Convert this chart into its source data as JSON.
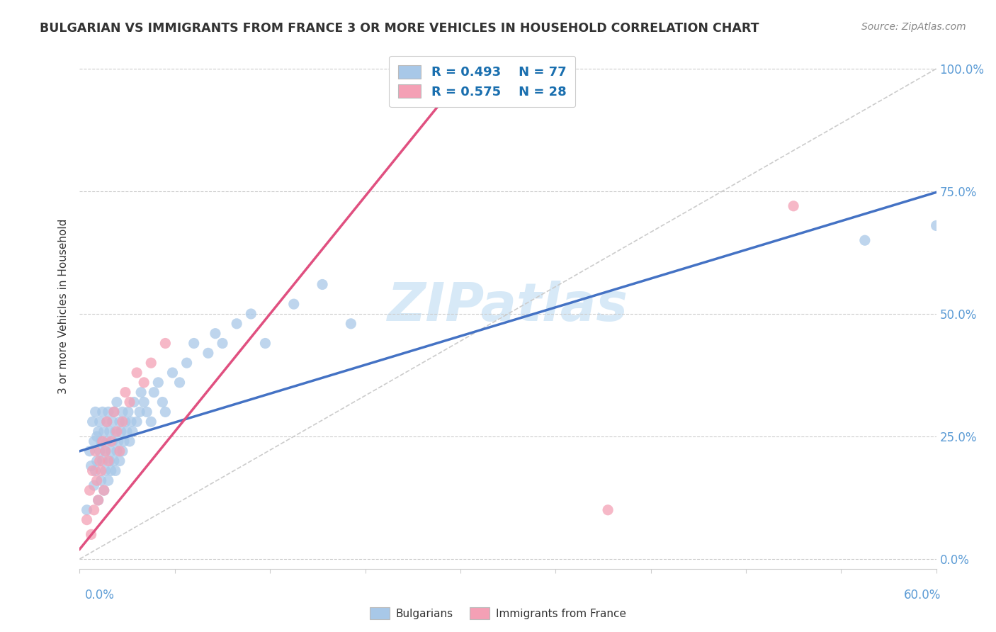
{
  "title": "BULGARIAN VS IMMIGRANTS FROM FRANCE 3 OR MORE VEHICLES IN HOUSEHOLD CORRELATION CHART",
  "source": "Source: ZipAtlas.com",
  "ylabel": "3 or more Vehicles in Household",
  "yticks": [
    "0.0%",
    "25.0%",
    "50.0%",
    "75.0%",
    "100.0%"
  ],
  "ytick_vals": [
    0.0,
    0.25,
    0.5,
    0.75,
    1.0
  ],
  "xlim": [
    0.0,
    0.6
  ],
  "ylim": [
    -0.02,
    1.05
  ],
  "watermark": "ZIPatlas",
  "blue_color": "#a8c8e8",
  "pink_color": "#f4a0b5",
  "trend_blue": "#4472c4",
  "trend_pink": "#e05080",
  "ref_line_color": "#cccccc",
  "blue_intercept": 0.22,
  "blue_slope": 0.88,
  "pink_intercept": 0.02,
  "pink_slope": 3.6,
  "bulgarians_x": [
    0.005,
    0.007,
    0.008,
    0.009,
    0.01,
    0.01,
    0.011,
    0.011,
    0.012,
    0.012,
    0.013,
    0.013,
    0.014,
    0.014,
    0.015,
    0.015,
    0.016,
    0.016,
    0.017,
    0.017,
    0.018,
    0.018,
    0.019,
    0.019,
    0.02,
    0.02,
    0.021,
    0.021,
    0.022,
    0.022,
    0.023,
    0.023,
    0.024,
    0.024,
    0.025,
    0.025,
    0.026,
    0.026,
    0.027,
    0.028,
    0.028,
    0.029,
    0.03,
    0.03,
    0.031,
    0.032,
    0.033,
    0.034,
    0.035,
    0.036,
    0.037,
    0.038,
    0.04,
    0.042,
    0.043,
    0.045,
    0.047,
    0.05,
    0.052,
    0.055,
    0.058,
    0.06,
    0.065,
    0.07,
    0.075,
    0.08,
    0.09,
    0.095,
    0.1,
    0.11,
    0.12,
    0.13,
    0.15,
    0.17,
    0.19,
    0.55,
    0.6
  ],
  "bulgarians_y": [
    0.1,
    0.22,
    0.19,
    0.28,
    0.15,
    0.24,
    0.18,
    0.3,
    0.2,
    0.25,
    0.12,
    0.26,
    0.22,
    0.28,
    0.16,
    0.24,
    0.2,
    0.3,
    0.14,
    0.26,
    0.22,
    0.18,
    0.28,
    0.24,
    0.16,
    0.3,
    0.2,
    0.26,
    0.22,
    0.18,
    0.28,
    0.24,
    0.2,
    0.3,
    0.18,
    0.26,
    0.22,
    0.32,
    0.24,
    0.2,
    0.28,
    0.26,
    0.3,
    0.22,
    0.24,
    0.28,
    0.26,
    0.3,
    0.24,
    0.28,
    0.26,
    0.32,
    0.28,
    0.3,
    0.34,
    0.32,
    0.3,
    0.28,
    0.34,
    0.36,
    0.32,
    0.3,
    0.38,
    0.36,
    0.4,
    0.44,
    0.42,
    0.46,
    0.44,
    0.48,
    0.5,
    0.44,
    0.52,
    0.56,
    0.48,
    0.65,
    0.68
  ],
  "france_x": [
    0.005,
    0.007,
    0.008,
    0.009,
    0.01,
    0.011,
    0.012,
    0.013,
    0.014,
    0.015,
    0.016,
    0.017,
    0.018,
    0.019,
    0.02,
    0.022,
    0.024,
    0.026,
    0.028,
    0.03,
    0.032,
    0.035,
    0.04,
    0.045,
    0.05,
    0.06,
    0.37,
    0.5
  ],
  "france_y": [
    0.08,
    0.14,
    0.05,
    0.18,
    0.1,
    0.22,
    0.16,
    0.12,
    0.2,
    0.18,
    0.24,
    0.14,
    0.22,
    0.28,
    0.2,
    0.24,
    0.3,
    0.26,
    0.22,
    0.28,
    0.34,
    0.32,
    0.38,
    0.36,
    0.4,
    0.44,
    0.1,
    0.72
  ]
}
